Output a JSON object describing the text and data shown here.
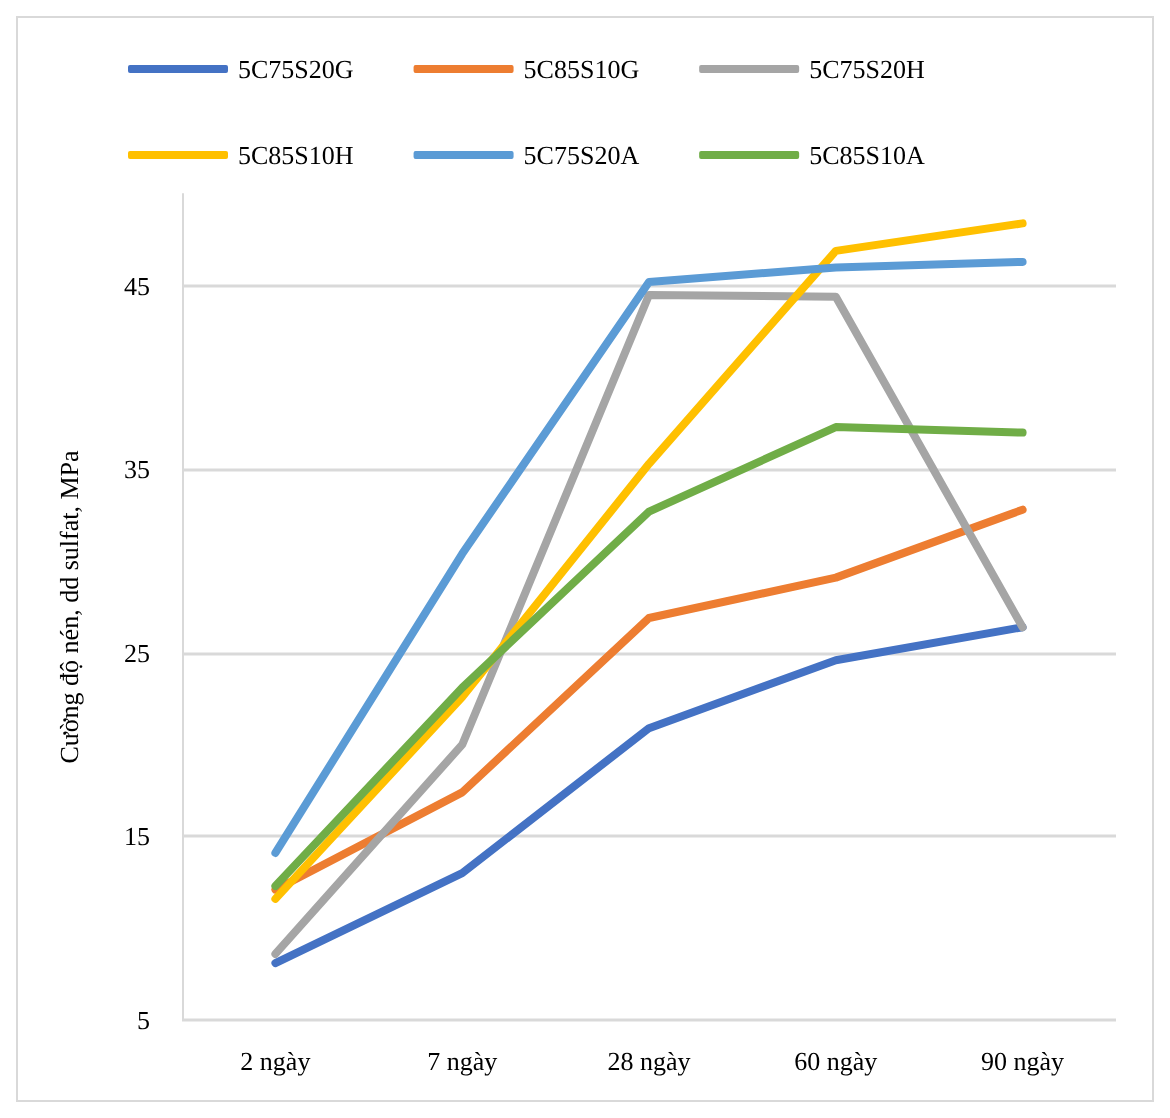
{
  "chart_data": {
    "type": "line",
    "ylabel": "Cường độ nén, dd sulfat, MPa",
    "categories": [
      "2 ngày",
      "7 ngày",
      "28 ngày",
      "60 ngày",
      "90 ngày"
    ],
    "series": [
      {
        "name": "5C75S20G",
        "color": "#4472c4",
        "values": [
          8.1,
          13.0,
          20.9,
          24.6,
          26.4
        ]
      },
      {
        "name": "5C85S10G",
        "color": "#ed7d31",
        "values": [
          12.1,
          17.4,
          26.9,
          29.1,
          32.8
        ]
      },
      {
        "name": "5C75S20H",
        "color": "#a5a5a5",
        "values": [
          8.6,
          20.0,
          44.5,
          44.4,
          26.4
        ]
      },
      {
        "name": "5C85S10H",
        "color": "#ffc000",
        "values": [
          11.6,
          22.6,
          35.3,
          46.9,
          48.4
        ]
      },
      {
        "name": "5C75S20A",
        "color": "#5b9bd5",
        "values": [
          14.1,
          30.4,
          45.2,
          46.0,
          46.3
        ]
      },
      {
        "name": "5C85S10A",
        "color": "#70ad47",
        "values": [
          12.3,
          23.1,
          32.7,
          37.3,
          37.0
        ]
      }
    ],
    "ylim": [
      5,
      50
    ],
    "yticks": [
      5,
      15,
      25,
      35,
      45
    ],
    "grid": "y",
    "legend": "top",
    "marker": "none",
    "line_style": "solid"
  }
}
